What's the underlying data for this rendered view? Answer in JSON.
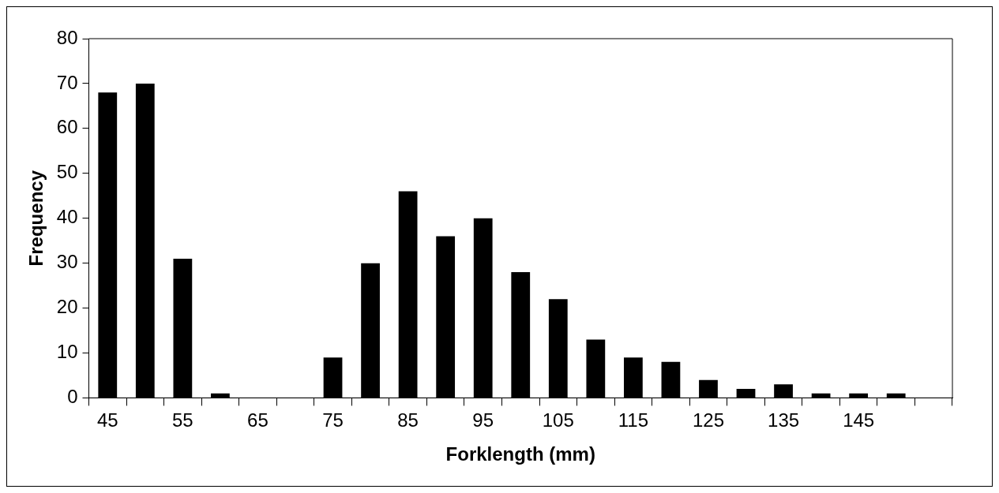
{
  "chart_data": {
    "type": "bar",
    "xlabel": "Forklength (mm)",
    "ylabel": "Frequency",
    "categories": [
      "45",
      null,
      "55",
      null,
      "65",
      null,
      "75",
      null,
      "85",
      null,
      "95",
      null,
      "105",
      null,
      "115",
      null,
      "125",
      null,
      "135",
      null,
      "145",
      null,
      null
    ],
    "values": [
      68,
      70,
      31,
      1,
      0,
      0,
      9,
      30,
      46,
      36,
      40,
      28,
      22,
      13,
      9,
      8,
      4,
      2,
      3,
      1,
      1,
      1,
      null
    ],
    "color": "#000000",
    "ylim": [
      0,
      80
    ],
    "yticks": [
      0,
      10,
      20,
      30,
      40,
      50,
      60,
      70,
      80
    ],
    "grid": false,
    "legend": false
  }
}
